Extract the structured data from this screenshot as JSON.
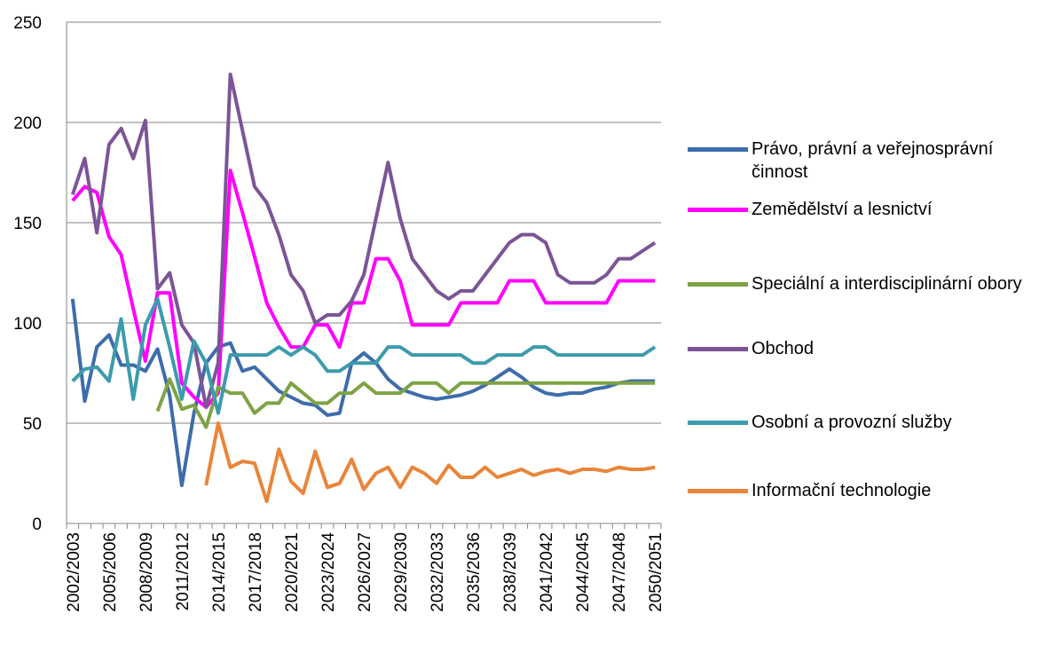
{
  "chart_data": {
    "type": "line",
    "categories": [
      "2002/2003",
      null,
      null,
      "2005/2006",
      null,
      null,
      "2008/2009",
      null,
      null,
      "2011/2012",
      null,
      null,
      "2014/2015",
      null,
      null,
      "2017/2018",
      null,
      null,
      "2020/2021",
      null,
      null,
      "2023/2024",
      null,
      null,
      "2026/2027",
      null,
      null,
      "2029/2030",
      null,
      null,
      "2032/2033",
      null,
      null,
      "2035/2036",
      null,
      null,
      "2038/2039",
      null,
      null,
      "2041/2042",
      null,
      null,
      "2044/2045",
      null,
      null,
      "2047/2048",
      null,
      null,
      "2050/2051"
    ],
    "ylim": [
      0,
      250
    ],
    "yticks": [
      0,
      50,
      100,
      150,
      200,
      250
    ],
    "grid": true,
    "legend": "right",
    "series": [
      {
        "name": "Právo, právní a veřejnosprávní činnost",
        "color": "#3e6cab",
        "values": [
          112,
          61,
          88,
          94,
          79,
          79,
          76,
          87,
          64,
          19,
          55,
          80,
          88,
          90,
          76,
          78,
          72,
          66,
          63,
          60,
          59,
          54,
          55,
          80,
          85,
          80,
          72,
          67,
          65,
          63,
          62,
          63,
          64,
          66,
          69,
          73,
          77,
          73,
          68,
          65,
          64,
          65,
          65,
          67,
          68,
          70,
          71,
          71,
          71
        ]
      },
      {
        "name": "Zemědělství a lesnictví",
        "color": "#ff00ff",
        "values": [
          161,
          168,
          165,
          143,
          134,
          107,
          81,
          115,
          115,
          70,
          63,
          58,
          65,
          176,
          155,
          133,
          110,
          98,
          88,
          88,
          99,
          99,
          88,
          110,
          110,
          132,
          132,
          121,
          99,
          99,
          99,
          99,
          110,
          110,
          110,
          110,
          121,
          121,
          121,
          110,
          110,
          110,
          110,
          110,
          110,
          121,
          121,
          121,
          121
        ]
      },
      {
        "name": "Speciální a interdisciplinární obory",
        "color": "#7ea345",
        "values": [
          null,
          null,
          null,
          null,
          null,
          null,
          null,
          56,
          72,
          57,
          59,
          48,
          68,
          65,
          65,
          55,
          60,
          60,
          70,
          65,
          60,
          60,
          65,
          65,
          70,
          65,
          65,
          65,
          70,
          70,
          70,
          65,
          70,
          70,
          70,
          70,
          70,
          70,
          70,
          70,
          70,
          70,
          70,
          70,
          70,
          70,
          70,
          70,
          70
        ]
      },
      {
        "name": "Obchod",
        "color": "#7b5596",
        "values": [
          164,
          182,
          145,
          189,
          197,
          182,
          201,
          117,
          125,
          99,
          90,
          58,
          80,
          224,
          196,
          168,
          160,
          144,
          124,
          116,
          100,
          104,
          104,
          111,
          124,
          152,
          180,
          152,
          132,
          124,
          116,
          112,
          116,
          116,
          124,
          132,
          140,
          144,
          144,
          140,
          124,
          120,
          120,
          120,
          124,
          132,
          132,
          136,
          140
        ]
      },
      {
        "name": "Osobní a provozní služby",
        "color": "#3c9bad",
        "values": [
          71,
          77,
          78,
          71,
          102,
          62,
          99,
          112,
          88,
          62,
          91,
          80,
          55,
          84,
          84,
          84,
          84,
          88,
          84,
          88,
          84,
          76,
          76,
          80,
          80,
          80,
          88,
          88,
          84,
          84,
          84,
          84,
          84,
          80,
          80,
          84,
          84,
          84,
          88,
          88,
          84,
          84,
          84,
          84,
          84,
          84,
          84,
          84,
          88
        ]
      },
      {
        "name": "Informační technologie",
        "color": "#e9853a",
        "values": [
          null,
          null,
          null,
          null,
          null,
          null,
          null,
          null,
          null,
          null,
          null,
          19,
          50,
          28,
          31,
          30,
          11,
          37,
          21,
          15,
          36,
          18,
          20,
          32,
          17,
          25,
          28,
          18,
          28,
          25,
          20,
          29,
          23,
          23,
          28,
          23,
          25,
          27,
          24,
          26,
          27,
          25,
          27,
          27,
          26,
          28,
          27,
          27,
          28
        ]
      }
    ]
  }
}
